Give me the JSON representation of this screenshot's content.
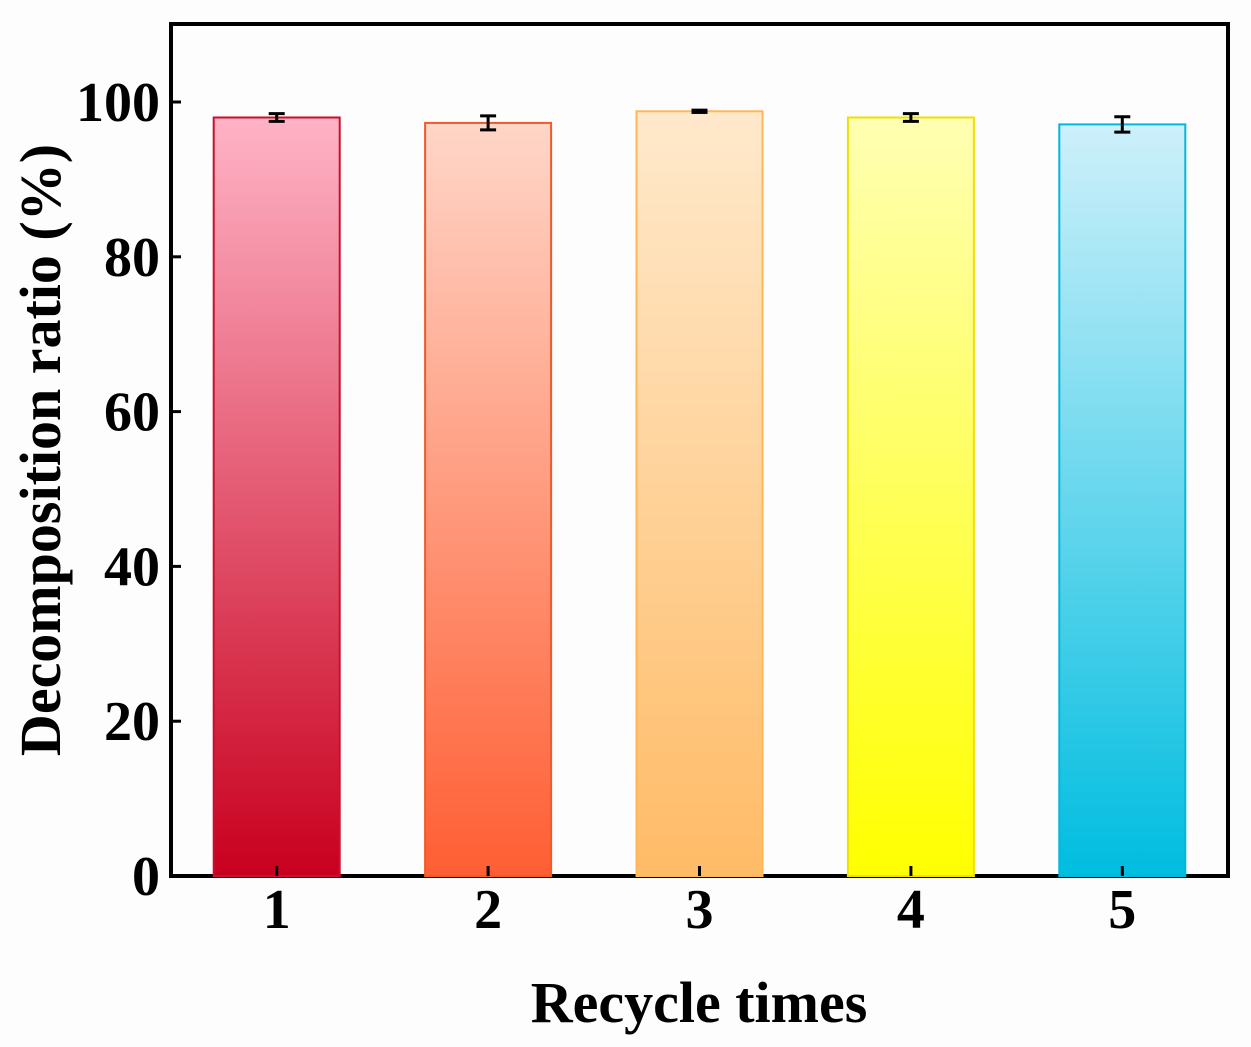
{
  "chart_data": {
    "type": "bar",
    "title": "",
    "xlabel": "Recycle times",
    "ylabel": "Decomposition ratio (%)",
    "categories": [
      "1",
      "2",
      "3",
      "4",
      "5"
    ],
    "values": [
      98.0,
      97.3,
      98.8,
      98.0,
      97.1
    ],
    "errors": [
      0.5,
      0.9,
      0.15,
      0.5,
      1.0
    ],
    "ylim": [
      0,
      110
    ],
    "yticks": [
      "0",
      "20",
      "40",
      "60",
      "80",
      "100"
    ],
    "grid": false,
    "legend": "none",
    "colors": [
      {
        "top": "#ffb3c6",
        "bottom": "#c8001e",
        "edge": "#c8102e"
      },
      {
        "top": "#ffd6c8",
        "bottom": "#ff5e33",
        "edge": "#ee5a2a"
      },
      {
        "top": "#ffe9cc",
        "bottom": "#ffbb66",
        "edge": "#ffb855"
      },
      {
        "top": "#ffffb3",
        "bottom": "#ffff00",
        "edge": "#f0e000"
      },
      {
        "top": "#cdf0fa",
        "bottom": "#00bde0",
        "edge": "#00b8dc"
      }
    ]
  }
}
